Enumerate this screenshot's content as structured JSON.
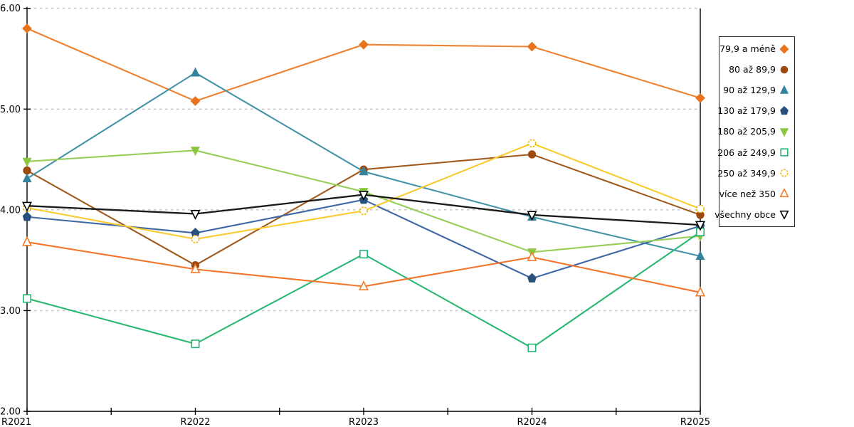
{
  "chart_data": {
    "type": "line",
    "categories": [
      "R2021",
      "R2022",
      "R2023",
      "R2024",
      "R2025"
    ],
    "title": "",
    "xlabel": "",
    "ylabel": "",
    "ylim": [
      2.0,
      6.0
    ],
    "ytick_labels": [
      "2.00",
      "3.00",
      "4.00",
      "5.00",
      "6.00"
    ],
    "grid": "horizontal-dashed",
    "legend_position": "right-box",
    "series": [
      {
        "name": "79,9 a méně",
        "marker": "diamond",
        "fill": "filled",
        "marker_color": "#E8751E",
        "line_color": "#EE8230",
        "values": [
          5.8,
          5.08,
          5.64,
          5.62,
          5.11
        ]
      },
      {
        "name": "80 až 89,9",
        "marker": "circle",
        "fill": "filled",
        "marker_color": "#9C4A0E",
        "line_color": "#A0591C",
        "values": [
          4.39,
          3.45,
          4.4,
          4.55,
          3.95
        ]
      },
      {
        "name": "90 až 129,9",
        "marker": "triangle-up",
        "fill": "filled",
        "marker_color": "#31849B",
        "line_color": "#4593A9",
        "values": [
          4.31,
          5.36,
          4.38,
          3.93,
          3.54
        ]
      },
      {
        "name": "130 až 179,9",
        "marker": "pentagon",
        "fill": "filled",
        "marker_color": "#27507E",
        "line_color": "#3E68A5",
        "values": [
          3.93,
          3.77,
          4.1,
          3.32,
          3.84
        ]
      },
      {
        "name": "180 až 205,9",
        "marker": "triangle-down",
        "fill": "filled",
        "marker_color": "#8CC63F",
        "line_color": "#97CE58",
        "values": [
          4.48,
          4.59,
          4.18,
          3.58,
          3.74
        ]
      },
      {
        "name": "206 až 249,9",
        "marker": "square",
        "fill": "open",
        "marker_color": "#22B573",
        "line_color": "#2BB873",
        "values": [
          3.12,
          2.67,
          3.56,
          2.63,
          3.78
        ]
      },
      {
        "name": "250 až 349,9",
        "marker": "circle-dashed",
        "fill": "open",
        "marker_color": "#F0B400",
        "line_color": "#F9CB2E",
        "values": [
          4.02,
          3.71,
          3.99,
          4.66,
          4.01
        ]
      },
      {
        "name": "více než 350",
        "marker": "triangle-up",
        "fill": "open",
        "marker_color": "#F07C28",
        "line_color": "#F3752B",
        "values": [
          3.68,
          3.41,
          3.24,
          3.53,
          3.18
        ]
      },
      {
        "name": "všechny obce",
        "marker": "triangle-down",
        "fill": "open",
        "marker_color": "#000000",
        "line_color": "#1A1A1A",
        "values": [
          4.04,
          3.96,
          4.15,
          3.95,
          3.85
        ]
      }
    ]
  },
  "colors": {
    "background": "#FFFFFF",
    "grid": "#C4C4C4",
    "axis": "#000000",
    "legend_border": "#2B2B2B",
    "text": "#000000"
  }
}
